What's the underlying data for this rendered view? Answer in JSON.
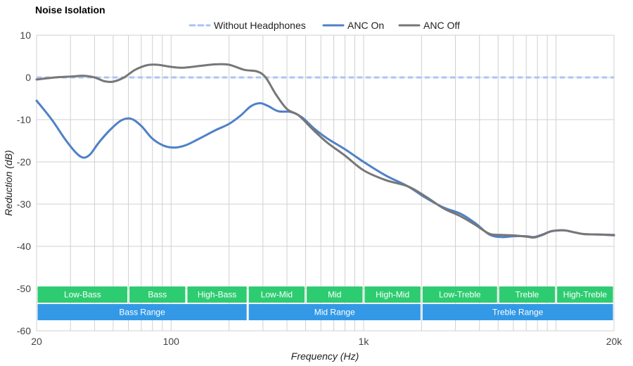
{
  "chart_data": {
    "type": "line",
    "title": "Noise Isolation",
    "xlabel": "Frequency (Hz)",
    "ylabel": "Reduction (dB)",
    "x_scale": "log",
    "xlim": [
      20,
      20000
    ],
    "ylim": [
      -60,
      10
    ],
    "x_ticks": [
      {
        "value": 20,
        "label": "20"
      },
      {
        "value": 100,
        "label": "100"
      },
      {
        "value": 1000,
        "label": "1k"
      },
      {
        "value": 20000,
        "label": "20k"
      }
    ],
    "y_ticks": [
      10,
      0,
      -10,
      -20,
      -30,
      -40,
      -50,
      -60
    ],
    "grid": true,
    "legend_position": "top-center",
    "series": [
      {
        "name": "Without Headphones",
        "color": "#aac4f5",
        "style": "dashed",
        "points": [
          [
            20,
            0
          ],
          [
            20000,
            0
          ]
        ]
      },
      {
        "name": "ANC On",
        "color": "#4f81c7",
        "style": "solid",
        "points": [
          [
            20,
            -5.5
          ],
          [
            24,
            -10
          ],
          [
            28,
            -14.5
          ],
          [
            32,
            -17.8
          ],
          [
            35,
            -19
          ],
          [
            38,
            -18.2
          ],
          [
            42,
            -15.5
          ],
          [
            48,
            -12.5
          ],
          [
            55,
            -10.2
          ],
          [
            62,
            -9.8
          ],
          [
            70,
            -11.5
          ],
          [
            80,
            -14.5
          ],
          [
            92,
            -16.2
          ],
          [
            105,
            -16.6
          ],
          [
            120,
            -16
          ],
          [
            140,
            -14.5
          ],
          [
            170,
            -12.5
          ],
          [
            200,
            -11
          ],
          [
            230,
            -9
          ],
          [
            260,
            -6.8
          ],
          [
            290,
            -6.1
          ],
          [
            320,
            -6.8
          ],
          [
            360,
            -8
          ],
          [
            420,
            -8.2
          ],
          [
            480,
            -9.5
          ],
          [
            550,
            -12
          ],
          [
            650,
            -14.5
          ],
          [
            800,
            -17
          ],
          [
            1000,
            -20
          ],
          [
            1300,
            -23.2
          ],
          [
            1700,
            -25.8
          ],
          [
            2100,
            -28.5
          ],
          [
            2600,
            -30.8
          ],
          [
            3200,
            -32.3
          ],
          [
            3800,
            -34.5
          ],
          [
            4500,
            -37.2
          ],
          [
            5200,
            -37.8
          ],
          [
            6000,
            -37.6
          ],
          [
            7000,
            -37.6
          ],
          [
            7700,
            -37.8
          ],
          [
            8500,
            -37.2
          ],
          [
            9500,
            -36.4
          ],
          [
            11000,
            -36.2
          ],
          [
            12500,
            -36.7
          ],
          [
            14000,
            -37.1
          ],
          [
            17000,
            -37.2
          ],
          [
            20000,
            -37.3
          ]
        ]
      },
      {
        "name": "ANC Off",
        "color": "#777777",
        "style": "solid",
        "points": [
          [
            20,
            -0.5
          ],
          [
            25,
            0
          ],
          [
            30,
            0.2
          ],
          [
            35,
            0.4
          ],
          [
            40,
            0
          ],
          [
            45,
            -0.9
          ],
          [
            50,
            -1
          ],
          [
            57,
            0
          ],
          [
            65,
            1.8
          ],
          [
            75,
            2.9
          ],
          [
            85,
            3
          ],
          [
            100,
            2.5
          ],
          [
            115,
            2.3
          ],
          [
            140,
            2.7
          ],
          [
            170,
            3.1
          ],
          [
            200,
            3
          ],
          [
            240,
            1.8
          ],
          [
            280,
            1.4
          ],
          [
            310,
            0
          ],
          [
            350,
            -4
          ],
          [
            400,
            -7.5
          ],
          [
            460,
            -9
          ],
          [
            550,
            -12.5
          ],
          [
            650,
            -15.5
          ],
          [
            800,
            -18.5
          ],
          [
            1000,
            -22
          ],
          [
            1300,
            -24.3
          ],
          [
            1700,
            -25.8
          ],
          [
            2100,
            -28.2
          ],
          [
            2600,
            -31
          ],
          [
            3200,
            -32.9
          ],
          [
            3800,
            -34.9
          ],
          [
            4500,
            -37
          ],
          [
            5200,
            -37.3
          ],
          [
            6000,
            -37.4
          ],
          [
            7000,
            -37.7
          ],
          [
            7700,
            -37.9
          ],
          [
            8500,
            -37.3
          ],
          [
            9500,
            -36.4
          ],
          [
            11000,
            -36.2
          ],
          [
            12500,
            -36.7
          ],
          [
            14000,
            -37.1
          ],
          [
            17000,
            -37.2
          ],
          [
            20000,
            -37.4
          ]
        ]
      }
    ],
    "bands": {
      "row1_color": "#2ecc71",
      "row2_color": "#3399e6",
      "row1": [
        {
          "label": "Low-Bass",
          "from": 20,
          "to": 60
        },
        {
          "label": "Bass",
          "from": 60,
          "to": 120
        },
        {
          "label": "High-Bass",
          "from": 120,
          "to": 250
        },
        {
          "label": "Low-Mid",
          "from": 250,
          "to": 500
        },
        {
          "label": "Mid",
          "from": 500,
          "to": 1000
        },
        {
          "label": "High-Mid",
          "from": 1000,
          "to": 2000
        },
        {
          "label": "Low-Treble",
          "from": 2000,
          "to": 5000
        },
        {
          "label": "Treble",
          "from": 5000,
          "to": 10000
        },
        {
          "label": "High-Treble",
          "from": 10000,
          "to": 20000
        }
      ],
      "row2": [
        {
          "label": "Bass Range",
          "from": 20,
          "to": 250
        },
        {
          "label": "Mid Range",
          "from": 250,
          "to": 2000
        },
        {
          "label": "Treble Range",
          "from": 2000,
          "to": 20000
        }
      ]
    }
  }
}
